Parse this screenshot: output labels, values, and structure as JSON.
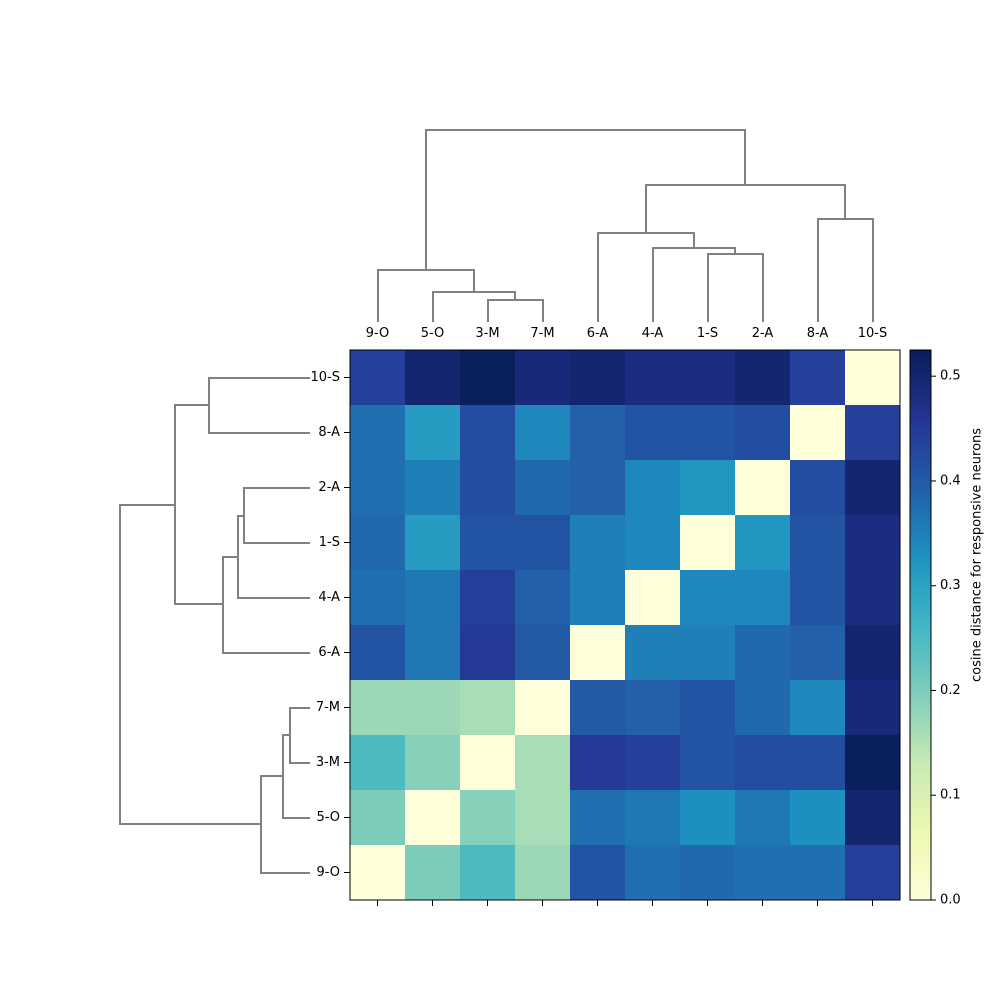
{
  "chart_data": {
    "type": "heatmap",
    "title": "",
    "column_labels": [
      "9-O",
      "5-O",
      "3-M",
      "7-M",
      "6-A",
      "4-A",
      "1-S",
      "2-A",
      "8-A",
      "10-S"
    ],
    "row_labels": [
      "10-S",
      "8-A",
      "2-A",
      "1-S",
      "4-A",
      "6-A",
      "7-M",
      "3-M",
      "5-O",
      "9-O"
    ],
    "values": [
      [
        0.44,
        0.5,
        0.52,
        0.49,
        0.5,
        0.48,
        0.48,
        0.5,
        0.44,
        0.0
      ],
      [
        0.37,
        0.31,
        0.42,
        0.34,
        0.39,
        0.41,
        0.41,
        0.42,
        0.0,
        0.44
      ],
      [
        0.37,
        0.35,
        0.42,
        0.38,
        0.39,
        0.34,
        0.32,
        0.0,
        0.42,
        0.5
      ],
      [
        0.38,
        0.31,
        0.41,
        0.41,
        0.35,
        0.34,
        0.0,
        0.32,
        0.41,
        0.48
      ],
      [
        0.37,
        0.36,
        0.44,
        0.39,
        0.35,
        0.0,
        0.34,
        0.34,
        0.41,
        0.48
      ],
      [
        0.41,
        0.36,
        0.45,
        0.4,
        0.0,
        0.35,
        0.35,
        0.38,
        0.39,
        0.5
      ],
      [
        0.17,
        0.17,
        0.16,
        0.0,
        0.4,
        0.39,
        0.41,
        0.38,
        0.34,
        0.49
      ],
      [
        0.25,
        0.19,
        0.0,
        0.16,
        0.45,
        0.44,
        0.41,
        0.42,
        0.42,
        0.52
      ],
      [
        0.2,
        0.0,
        0.19,
        0.16,
        0.37,
        0.36,
        0.33,
        0.36,
        0.33,
        0.5
      ],
      [
        0.0,
        0.2,
        0.25,
        0.17,
        0.41,
        0.37,
        0.38,
        0.37,
        0.37,
        0.44
      ]
    ],
    "colorbar": {
      "label": "cosine distance for responsive neurons",
      "range": [
        0.0,
        0.525
      ],
      "ticks": [
        0.0,
        0.1,
        0.2,
        0.3,
        0.4,
        0.5
      ],
      "tick_labels": [
        "0.0",
        "0.1",
        "0.2",
        "0.3",
        "0.4",
        "0.5"
      ],
      "colormap": "YlGnBu",
      "stops": [
        "#ffffd9",
        "#edf8b1",
        "#c7e9b4",
        "#7fcdbb",
        "#41b6c4",
        "#1d91c0",
        "#225ea8",
        "#253494",
        "#081d58"
      ]
    },
    "column_dendrogram": {
      "merges": [
        {
          "left": 2,
          "right": 3,
          "height": 0.0
        },
        {
          "left": 1,
          "right": "2+3",
          "height": 0.0
        },
        {
          "left": 0,
          "right": "1+2+3",
          "height": 0.0
        },
        {
          "left": 6,
          "right": 7,
          "height": 0.0
        },
        {
          "left": 5,
          "right": "6+7",
          "height": 0.0
        },
        {
          "left": 4,
          "right": "5+6+7",
          "height": 0.0
        },
        {
          "left": 8,
          "right": 9,
          "height": 0.0
        },
        {
          "left": "4-7",
          "right": "8+9",
          "height": 0.0
        },
        {
          "left": "0-3",
          "right": "4-9",
          "height": 0.0
        }
      ]
    },
    "row_dendrogram": {
      "merges": [
        {
          "left": 0,
          "right": 1,
          "height": 0.0
        },
        {
          "left": 2,
          "right": 3,
          "height": 0.0
        },
        {
          "left": "2+3",
          "right": 4,
          "height": 0.0
        },
        {
          "left": "2-4",
          "right": 5,
          "height": 0.0
        },
        {
          "left": "0+1",
          "right": "2-5",
          "height": 0.0
        },
        {
          "left": 6,
          "right": 7,
          "height": 0.0
        },
        {
          "left": "6+7",
          "right": 8,
          "height": 0.0
        },
        {
          "left": "6-8",
          "right": 9,
          "height": 0.0
        },
        {
          "left": "0-5",
          "right": "6-9",
          "height": 0.0
        }
      ]
    },
    "dendrogram_color": "#808080"
  }
}
